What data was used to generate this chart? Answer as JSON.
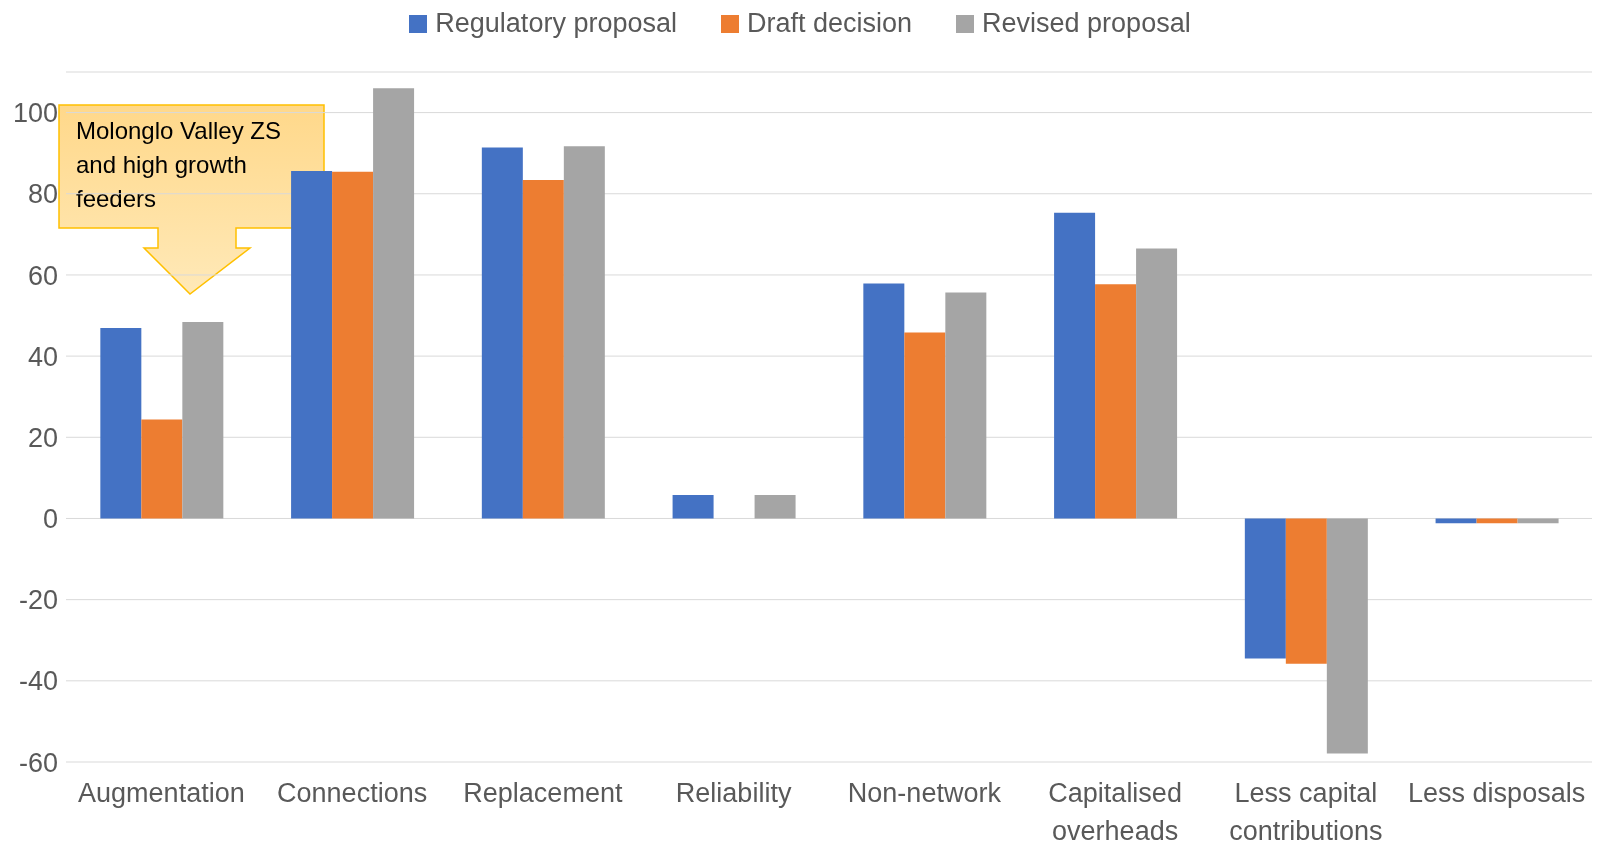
{
  "chart_data": {
    "type": "bar",
    "categories": [
      "Augmentation",
      "Connections",
      "Replacement",
      "Reliability",
      "Non-network",
      "Capitalised overheads",
      "Less capital contributions",
      "Less disposals"
    ],
    "series": [
      {
        "name": "Regulatory proposal",
        "color": "#4472c4",
        "values": [
          46.9,
          85.6,
          91.4,
          5.8,
          57.9,
          75.3,
          -34.5,
          -1.2
        ]
      },
      {
        "name": "Draft decision",
        "color": "#ed7d31",
        "values": [
          24.4,
          85.4,
          83.4,
          0,
          45.8,
          57.7,
          -35.8,
          -1.2
        ]
      },
      {
        "name": "Revised proposal",
        "color": "#a5a5a5",
        "values": [
          48.4,
          106,
          91.7,
          5.8,
          55.7,
          66.5,
          -57.9,
          -1.2
        ]
      }
    ],
    "ylim": [
      -60,
      110
    ],
    "yticks": [
      -60,
      -40,
      -20,
      0,
      20,
      40,
      60,
      80,
      100
    ],
    "grid": "y",
    "legend": "top",
    "annotations": [
      "Molonglo Valley ZS and high growth feeders"
    ]
  }
}
